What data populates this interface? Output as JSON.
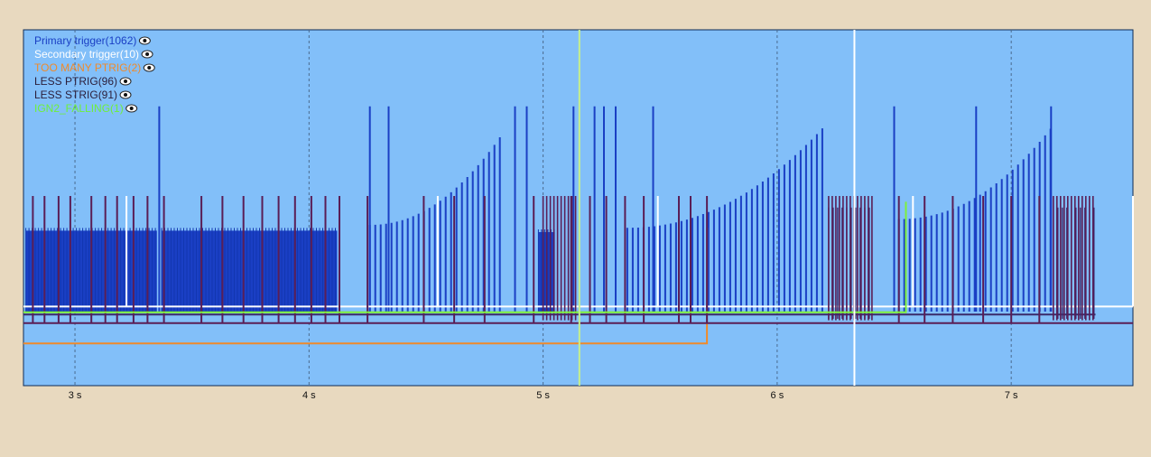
{
  "chart_data": {
    "type": "line",
    "title": "",
    "xlabel": "",
    "ylabel": "",
    "xlim": [
      2.78,
      7.52
    ],
    "x_ticks": [
      {
        "value": 3,
        "label": "3 s"
      },
      {
        "value": 4,
        "label": "4 s"
      },
      {
        "value": 5,
        "label": "5 s"
      },
      {
        "value": 6,
        "label": "6 s"
      },
      {
        "value": 7,
        "label": "7 s"
      }
    ],
    "grid": "vertical-dashed",
    "legend_position": "top-left",
    "background": "#82bff9",
    "cursors": [
      {
        "x": 5.155,
        "color": "#c8f08a"
      },
      {
        "x": 6.33,
        "color": "#ffffff"
      }
    ],
    "series": [
      {
        "name": "Primary trigger",
        "count": "1062",
        "label": "Primary trigger(1062)",
        "color": "#1a3fc4",
        "segments": [
          {
            "kind": "dense",
            "x0": 2.79,
            "x1": 3.35,
            "level": 0.56
          },
          {
            "kind": "dense",
            "x0": 3.37,
            "x1": 4.12,
            "level": 0.56
          },
          {
            "kind": "ramp",
            "x0": 4.26,
            "x1": 4.83,
            "level0": 0.6,
            "level1": 1.24
          },
          {
            "kind": "dense",
            "x0": 4.98,
            "x1": 5.05,
            "level": 0.55
          },
          {
            "kind": "ramp",
            "x0": 5.36,
            "x1": 6.2,
            "level0": 0.58,
            "level1": 1.28
          },
          {
            "kind": "ramp",
            "x0": 6.52,
            "x1": 7.18,
            "level0": 0.64,
            "level1": 1.29
          }
        ],
        "spikes": [
          3.36,
          4.26,
          4.34,
          4.88,
          4.93,
          5.13,
          5.22,
          5.26,
          5.31,
          5.47,
          6.5,
          6.85,
          7.17
        ],
        "spike_level": 1.42
      },
      {
        "name": "Secondary trigger",
        "count": "10",
        "label": "Secondary trigger(10)",
        "color": "#ffffff",
        "baseline": 0.035,
        "pulses": [
          {
            "x": 3.22,
            "level": 0.8
          },
          {
            "x": 4.55,
            "level": 0.8
          },
          {
            "x": 5.49,
            "level": 0.8
          },
          {
            "x": 6.58,
            "level": 0.8
          },
          {
            "x": 7.52,
            "level": 0.8
          }
        ]
      },
      {
        "name": "TOO MANY PTRIG",
        "count": "2",
        "label": "TOO MANY PTRIG(2)",
        "color": "#f08a2a",
        "steps": [
          [
            2.78,
            -0.22
          ],
          [
            5.7,
            -0.22
          ],
          [
            5.7,
            0.58
          ]
        ]
      },
      {
        "name": "LESS PTRIG",
        "count": "96",
        "label": "LESS PTRIG(96)",
        "color": "#3a2a6a",
        "baseline": -0.02,
        "bursts": [
          {
            "x0": 6.22,
            "x1": 6.4
          },
          {
            "x0": 7.18,
            "x1": 7.36
          }
        ]
      },
      {
        "name": "LESS STRIG",
        "count": "91",
        "label": "LESS STRIG(91)",
        "color": "#5a1e56",
        "baseline": -0.08,
        "pulses_x": [
          2.82,
          2.87,
          2.93,
          2.98,
          3.07,
          3.13,
          3.18,
          3.25,
          3.31,
          3.38,
          3.54,
          3.63,
          3.72,
          3.8,
          3.87,
          3.94,
          4.01,
          4.07,
          4.13,
          4.25,
          4.49,
          4.62,
          4.75,
          4.96,
          5.12,
          5.2,
          5.27,
          5.35,
          5.43,
          5.58,
          5.63,
          5.7,
          6.52,
          6.63,
          6.75,
          6.88,
          7.0,
          7.12
        ],
        "bursts": [
          {
            "x0": 5.0,
            "x1": 5.15
          },
          {
            "x0": 6.22,
            "x1": 6.42
          },
          {
            "x0": 7.18,
            "x1": 7.35
          }
        ],
        "pulse_level": 0.8
      },
      {
        "name": "IGN2_FALLING",
        "count": "1",
        "label": "IGN2_FALLING(1)",
        "color": "#7ff03a",
        "steps": [
          [
            2.78,
            -0.005
          ],
          [
            6.55,
            -0.005
          ],
          [
            6.55,
            0.76
          ]
        ]
      }
    ]
  }
}
